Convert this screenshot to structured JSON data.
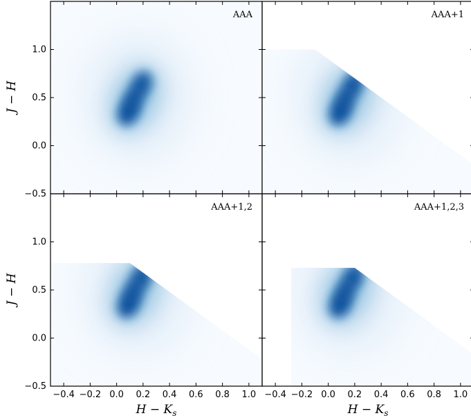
{
  "chart_data": {
    "type": "heatmap",
    "xlabel": "H − K",
    "xlabel_sub": "s",
    "ylabel": "J − H",
    "xlim": [
      -0.5,
      1.1
    ],
    "ylim": [
      -0.5,
      1.5
    ],
    "xticks": [
      "−0.4",
      "−0.2",
      "0.0",
      "0.2",
      "0.4",
      "0.6",
      "0.8",
      "1.0"
    ],
    "xtick_values": [
      -0.4,
      -0.2,
      0.0,
      0.2,
      0.4,
      0.6,
      0.8,
      1.0
    ],
    "yticks": [
      "−0.5",
      "0.0",
      "0.5",
      "1.0"
    ],
    "ytick_values": [
      -0.5,
      0.0,
      0.5,
      1.0
    ],
    "colormap": "Blues",
    "colors": {
      "low": "#f7fbff",
      "high": "#08306b"
    },
    "density_peaks": [
      {
        "x": 0.09,
        "y": 0.35,
        "weight": 1.0
      },
      {
        "x": 0.19,
        "y": 0.64,
        "weight": 0.8
      },
      {
        "x": 0.13,
        "y": 0.49,
        "weight": 0.75
      }
    ],
    "panels": [
      {
        "label": "AAA"
      },
      {
        "label": "AAA+1",
        "cut": {
          "ymax": 1.0,
          "slope": -1,
          "intercept": 0.9
        }
      },
      {
        "label": "AAA+1,2",
        "cut": {
          "ymax": 0.78,
          "slope": -1,
          "intercept": 0.88
        }
      },
      {
        "label": "AAA+1,2,3",
        "cut": {
          "ymax": 0.73,
          "slope": -1,
          "intercept": 0.93,
          "xmin": -0.28
        }
      }
    ]
  }
}
